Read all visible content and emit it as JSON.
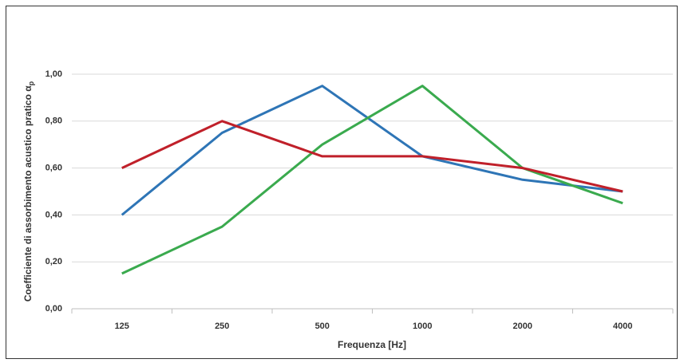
{
  "chart_data": {
    "type": "line",
    "xlabel": "Frequenza [Hz]",
    "ylabel": "Coefficiente di assorbimento acustico pratico α",
    "ylabel_sub": "p",
    "categories": [
      "125",
      "250",
      "500",
      "1000",
      "2000",
      "4000"
    ],
    "series": [
      {
        "color": "#2e75b6",
        "values": [
          0.4,
          0.75,
          0.95,
          0.65,
          0.55,
          0.5
        ]
      },
      {
        "color": "#3aaa4e",
        "values": [
          0.15,
          0.35,
          0.7,
          0.95,
          0.6,
          0.45
        ]
      },
      {
        "color": "#c0202a",
        "values": [
          0.6,
          0.8,
          0.65,
          0.65,
          0.6,
          0.5
        ]
      }
    ],
    "ylim": [
      0,
      1.0
    ],
    "yticks": [
      {
        "value": 0,
        "label": "0,00"
      },
      {
        "value": 0.2,
        "label": "0,20"
      },
      {
        "value": 0.4,
        "label": "0,40"
      },
      {
        "value": 0.6,
        "label": "0,60"
      },
      {
        "value": 0.8,
        "label": "0,80"
      },
      {
        "value": 1.0,
        "label": "1,00"
      }
    ],
    "grid": true
  }
}
